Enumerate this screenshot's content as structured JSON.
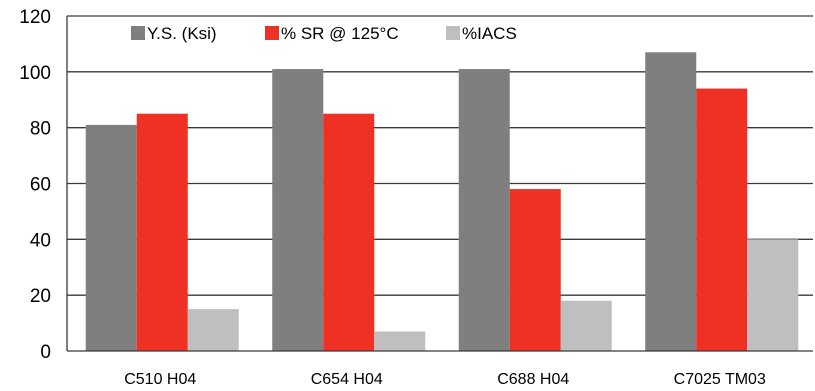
{
  "chart_data": {
    "type": "bar",
    "title": "",
    "xlabel": "",
    "ylabel": "",
    "categories": [
      "C510 H04",
      "C654 H04",
      "C688 H04",
      "C7025 TM03"
    ],
    "series": [
      {
        "name": "Y.S. (Ksi)",
        "color": "#7f7f7f",
        "values": [
          81,
          101,
          101,
          107
        ]
      },
      {
        "name": "% SR @ 125°C",
        "color": "#ee3124",
        "values": [
          85,
          85,
          58,
          94
        ]
      },
      {
        "name": "%IACS",
        "color": "#bfbfbf",
        "values": [
          15,
          7,
          18,
          40
        ]
      }
    ],
    "ylim": [
      0,
      120
    ],
    "yticks": [
      "0",
      "20",
      "40",
      "60",
      "80",
      "100",
      "120"
    ],
    "grid": true,
    "legend_position": "top-left"
  }
}
